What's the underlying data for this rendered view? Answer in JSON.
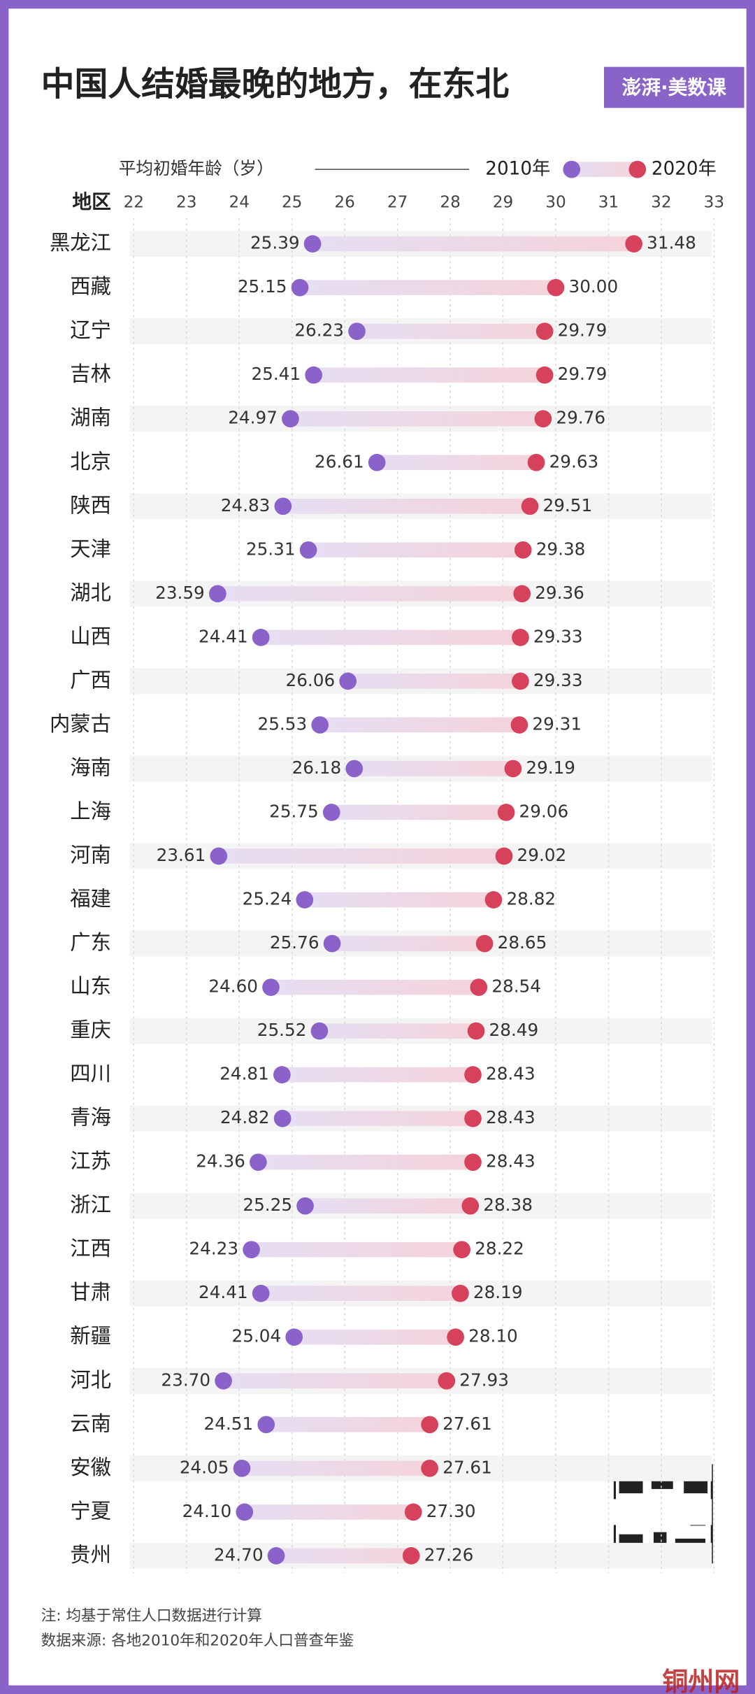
{
  "chart_data": {
    "type": "dumbbell",
    "title": "中国人结婚最晚的地方，在东北",
    "logo": "澎湃·美数课",
    "x_label": "平均初婚年龄（岁）",
    "category_header": "地区",
    "categories": [
      "黑龙江",
      "西藏",
      "辽宁",
      "吉林",
      "湖南",
      "北京",
      "陕西",
      "天津",
      "湖北",
      "山西",
      "广西",
      "内蒙古",
      "海南",
      "上海",
      "河南",
      "福建",
      "广东",
      "山东",
      "重庆",
      "四川",
      "青海",
      "江苏",
      "浙江",
      "江西",
      "甘肃",
      "新疆",
      "河北",
      "云南",
      "安徽",
      "宁夏",
      "贵州"
    ],
    "series": [
      {
        "name": "2010年",
        "color": "#8b62c9",
        "values": [
          25.39,
          25.15,
          26.23,
          25.41,
          24.97,
          26.61,
          24.83,
          25.31,
          23.59,
          24.41,
          26.06,
          25.53,
          26.18,
          25.75,
          23.61,
          25.24,
          25.76,
          24.6,
          25.52,
          24.81,
          24.82,
          24.36,
          25.25,
          24.23,
          24.41,
          25.04,
          23.7,
          24.51,
          24.05,
          24.1,
          24.7
        ],
        "value_labels": [
          "25.39",
          "25.15",
          "26.23",
          "25.41",
          "24.97",
          "26.61",
          "24.83",
          "25.31",
          "23.59",
          "24.41",
          "26.06",
          "25.53",
          "26.18",
          "25.75",
          "23.61",
          "25.24",
          "25.76",
          "24.60",
          "25.52",
          "24.81",
          "24.82",
          "24.36",
          "25.25",
          "24.23",
          "24.41",
          "25.04",
          "23.70",
          "24.51",
          "24.05",
          "24.10",
          "24.70"
        ]
      },
      {
        "name": "2020年",
        "color": "#d6415b",
        "values": [
          31.48,
          30.0,
          29.79,
          29.79,
          29.76,
          29.63,
          29.51,
          29.38,
          29.36,
          29.33,
          29.33,
          29.31,
          29.19,
          29.06,
          29.02,
          28.82,
          28.65,
          28.54,
          28.49,
          28.43,
          28.43,
          28.43,
          28.38,
          28.22,
          28.19,
          28.1,
          27.93,
          27.61,
          27.61,
          27.3,
          27.26
        ],
        "value_labels": [
          "31.48",
          "30.00",
          "29.79",
          "29.79",
          "29.76",
          "29.63",
          "29.51",
          "29.38",
          "29.36",
          "29.33",
          "29.33",
          "29.31",
          "29.19",
          "29.06",
          "29.02",
          "28.82",
          "28.65",
          "28.54",
          "28.49",
          "28.43",
          "28.43",
          "28.43",
          "28.38",
          "28.22",
          "28.19",
          "28.10",
          "27.93",
          "27.61",
          "27.61",
          "27.30",
          "27.26"
        ]
      }
    ],
    "xlim": [
      22,
      33
    ],
    "xticks": [
      22,
      23,
      24,
      25,
      26,
      27,
      28,
      29,
      30,
      31,
      32,
      33
    ],
    "grid": true,
    "notes": [
      "注:  均基于常住人口数据进行计算",
      "数据来源:   各地2010年和2020年人口普查年鉴"
    ],
    "watermark": "铜州网"
  }
}
